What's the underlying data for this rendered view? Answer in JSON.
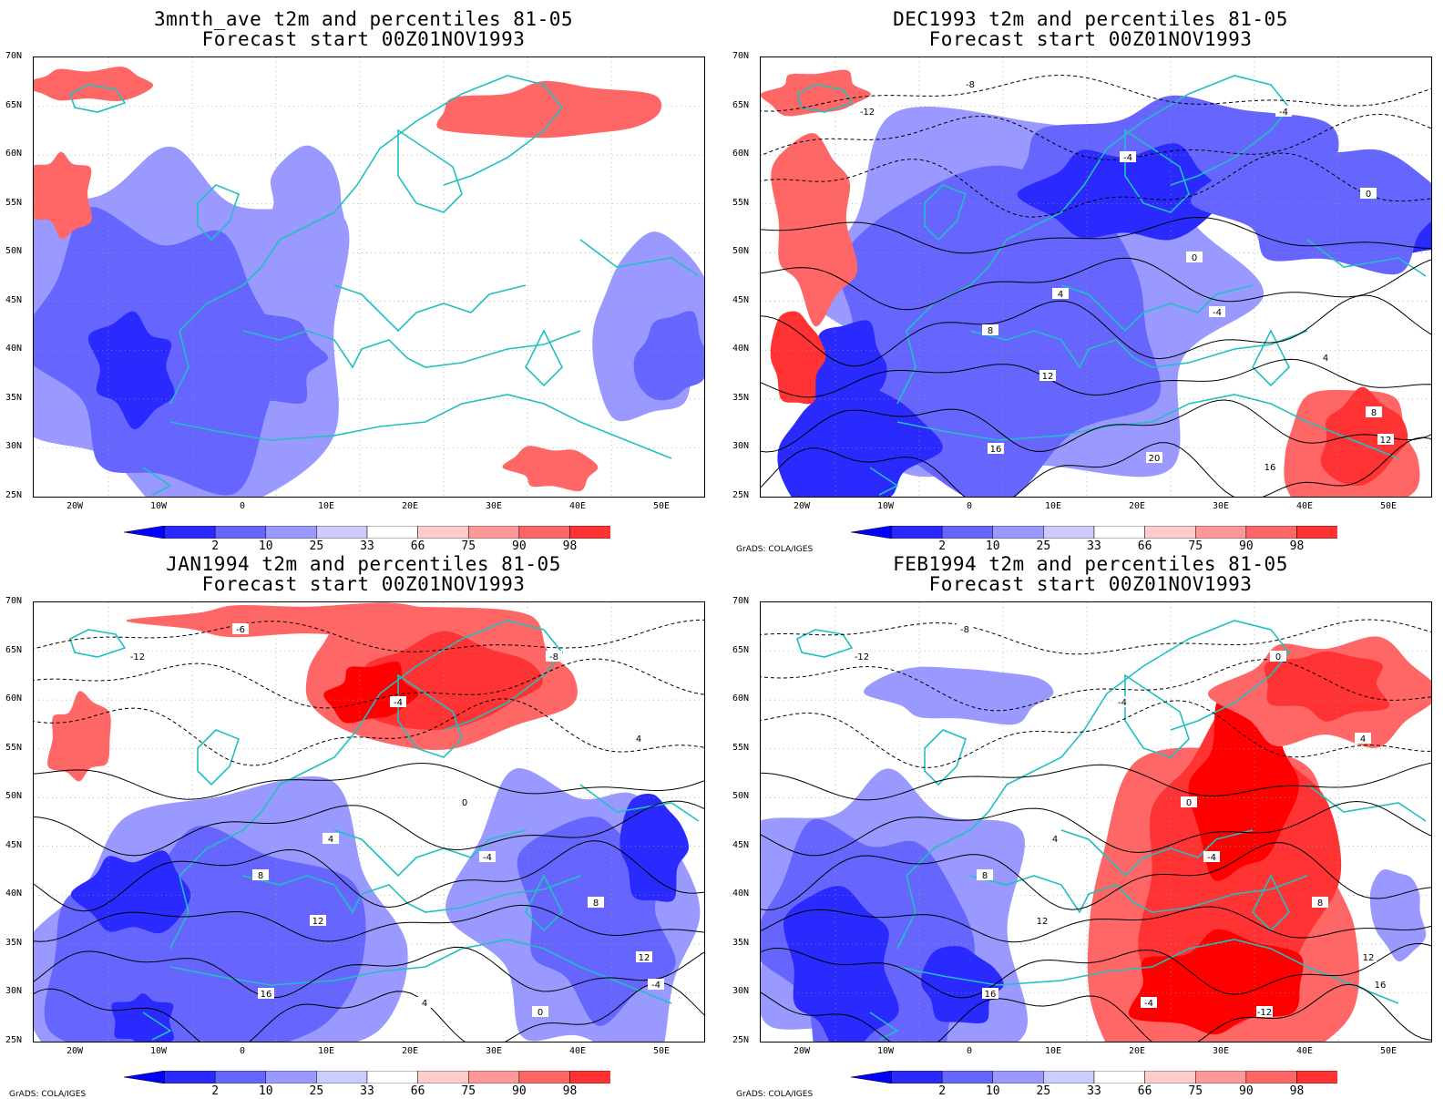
{
  "panels": [
    {
      "title_line1": "3mnth_ave t2m and percentiles 81-05",
      "title_line2": "Forecast start 00Z01NOV1993",
      "credit": "",
      "contour_labels": []
    },
    {
      "title_line1": "DEC1993 t2m and percentiles 81-05",
      "title_line2": "Forecast start 00Z01NOV1993",
      "credit": "GrADS: COLA/IGES",
      "contour_labels": [
        "-12",
        "-8",
        "-4",
        "0",
        "4",
        "8",
        "12",
        "16",
        "-4",
        "-4",
        "0",
        "4",
        "8",
        "12",
        "16",
        "20"
      ]
    },
    {
      "title_line1": "JAN1994 t2m and percentiles 81-05",
      "title_line2": "Forecast start 00Z01NOV1993",
      "credit": "GrADS: COLA/IGES",
      "contour_labels": [
        "-12",
        "-6",
        "-4",
        "0",
        "4",
        "8",
        "12",
        "16",
        "-4",
        "-8",
        "4",
        "8",
        "12",
        "-4",
        "0",
        "4"
      ]
    },
    {
      "title_line1": "FEB1994 t2m and percentiles 81-05",
      "title_line2": "Forecast start 00Z01NOV1993",
      "credit": "GrADS: COLA/IGES",
      "contour_labels": [
        "-12",
        "-8",
        "-4",
        "0",
        "4",
        "8",
        "12",
        "16",
        "-4",
        "0",
        "4",
        "8",
        "12",
        "16",
        "-12",
        "-4"
      ]
    }
  ],
  "lat_ticks": [
    "70N",
    "65N",
    "60N",
    "55N",
    "50N",
    "45N",
    "40N",
    "35N",
    "30N",
    "25N"
  ],
  "lon_ticks": [
    "20W",
    "10W",
    "0",
    "10E",
    "20E",
    "30E",
    "40E",
    "50E"
  ],
  "colorbar": {
    "labels": [
      "2",
      "10",
      "25",
      "33",
      "66",
      "75",
      "90",
      "98"
    ],
    "colors": [
      "#0000ff",
      "#2a2aff",
      "#6666ff",
      "#9999ff",
      "#ccccff",
      "#ffffff",
      "#ffcccc",
      "#ff9999",
      "#ff6666",
      "#ff3333",
      "#ff0000"
    ]
  },
  "colors": {
    "coastline": "#20c0c0",
    "contour": "#000000",
    "grid": "#999999"
  }
}
